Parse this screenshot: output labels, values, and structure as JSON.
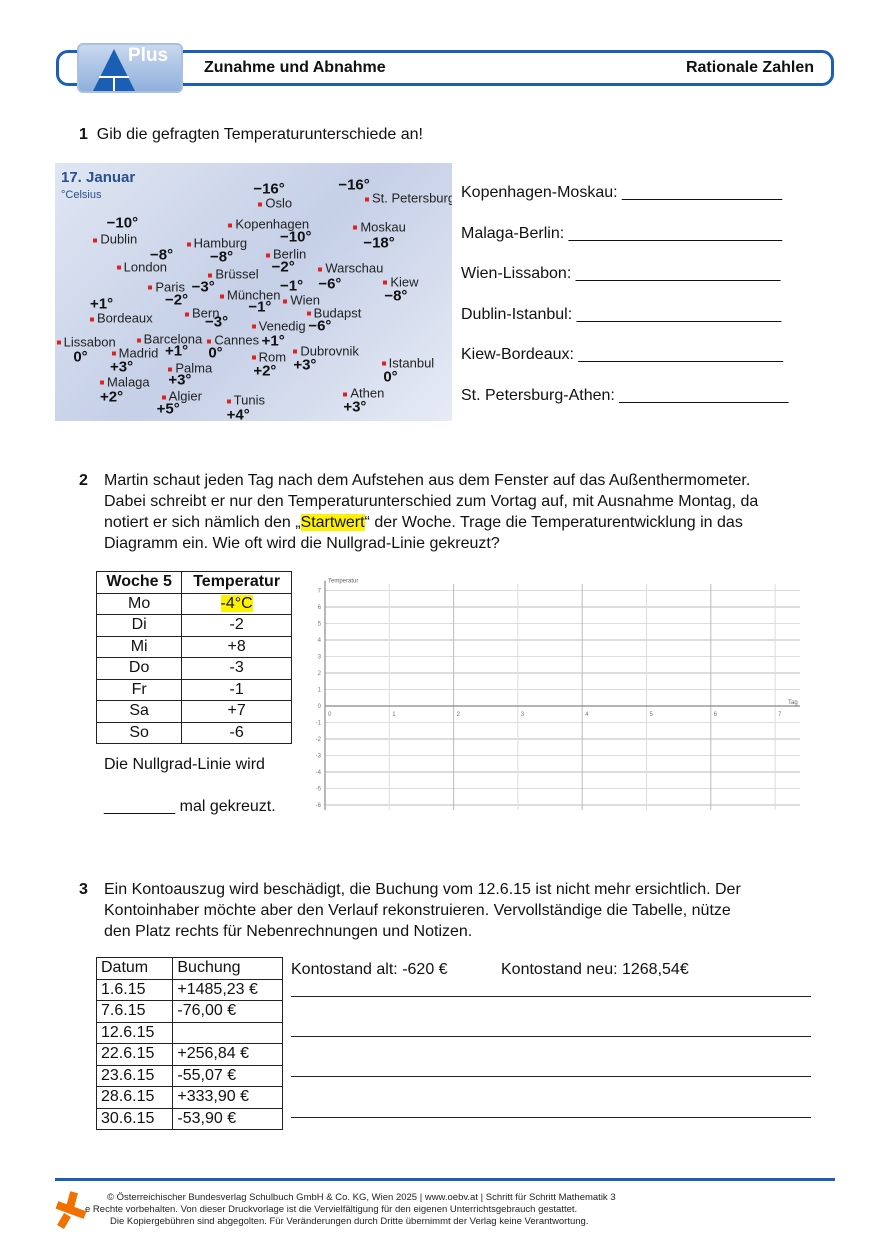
{
  "header": {
    "badge": "Plus",
    "title": "Zunahme und Abnahme",
    "subject": "Rationale Zahlen",
    "accent": "#1a5fb4"
  },
  "q1": {
    "number": "1",
    "text": "Gib die gefragten Temperaturunterschiede an!",
    "map": {
      "title": "17. Januar",
      "unit": "°Celsius",
      "cities": [
        {
          "name": "Oslo",
          "temp": "−16°"
        },
        {
          "name": "St. Petersburg",
          "temp": "−16°"
        },
        {
          "name": "Dublin",
          "temp": "−10°"
        },
        {
          "name": "London",
          "temp": "−8°"
        },
        {
          "name": "Hamburg",
          "temp": "−8°"
        },
        {
          "name": "Kopenhagen",
          "temp": "−10°"
        },
        {
          "name": "Moskau",
          "temp": "−18°"
        },
        {
          "name": "Berlin",
          "temp": "−2°"
        },
        {
          "name": "Brüssel",
          "temp": "−3°"
        },
        {
          "name": "Paris",
          "temp": "−2°"
        },
        {
          "name": "Warschau",
          "temp": "−6°"
        },
        {
          "name": "Kiew",
          "temp": "−8°"
        },
        {
          "name": "München",
          "temp": "−1°"
        },
        {
          "name": "Wien",
          "temp": "−1°"
        },
        {
          "name": "Bordeaux",
          "temp": "+1°"
        },
        {
          "name": "Bern",
          "temp": "−3°"
        },
        {
          "name": "Budapst",
          "temp": "−6°"
        },
        {
          "name": "Venedig",
          "temp": "+1°"
        },
        {
          "name": "Lissabon",
          "temp": "0°"
        },
        {
          "name": "Barcelona",
          "temp": "+1°"
        },
        {
          "name": "Cannes",
          "temp": "0°"
        },
        {
          "name": "Madrid",
          "temp": "+3°"
        },
        {
          "name": "Rom",
          "temp": "+2°"
        },
        {
          "name": "Dubrovnik",
          "temp": "+3°"
        },
        {
          "name": "Istanbul",
          "temp": "0°"
        },
        {
          "name": "Palma",
          "temp": "+3°"
        },
        {
          "name": "Malaga",
          "temp": "+2°"
        },
        {
          "name": "Algier",
          "temp": "+5°"
        },
        {
          "name": "Tunis",
          "temp": "+4°"
        },
        {
          "name": "Athen",
          "temp": "+3°"
        }
      ]
    },
    "answers": [
      "Kopenhagen-Moskau: __________________",
      "Malaga-Berlin: ________________________",
      "Wien-Lissabon: _______________________",
      "Dublin-Istanbul: _______________________",
      "Kiew-Bordeaux: _______________________",
      "St. Petersburg-Athen: ___________________"
    ]
  },
  "q2": {
    "number": "2",
    "text_lines": [
      "Martin schaut jeden Tag nach dem Aufstehen aus dem Fenster auf das Außenthermometer.",
      "Dabei schreibt er nur den Temperaturunterschied zum Vortag auf, mit Ausnahme Montag, da"
    ],
    "line3_pre": "notiert er sich nämlich den „",
    "line3_hl": "Startwert",
    "line3_post": "“ der Woche. Trage die Temperaturentwicklung in das",
    "line4": "Diagramm ein. Wie oft wird die Nullgrad-Linie gekreuzt?",
    "table": {
      "headers": [
        "Woche 5",
        "Temperatur"
      ],
      "rows": [
        [
          "Mo",
          "-4°C"
        ],
        [
          "Di",
          "-2"
        ],
        [
          "Mi",
          "+8"
        ],
        [
          "Do",
          "-3"
        ],
        [
          "Fr",
          "-1"
        ],
        [
          "Sa",
          "+7"
        ],
        [
          "So",
          "-6"
        ]
      ]
    },
    "answer1": "Die Nullgrad-Linie wird",
    "answer2": "________ mal gekreuzt.",
    "chart_data": {
      "type": "line",
      "ylabel": "Temperatur",
      "xlabel": "Tag",
      "xlim": [
        0,
        7
      ],
      "ylim": [
        -6,
        7
      ],
      "xticks": [
        "0",
        "1",
        "2",
        "3",
        "4",
        "5",
        "6",
        "7"
      ],
      "yticks": [
        "7",
        "6",
        "5",
        "4",
        "3",
        "2",
        "1",
        "0",
        "-1",
        "-2",
        "-3",
        "-4",
        "-5",
        "-6"
      ],
      "grid": true,
      "series": []
    }
  },
  "q3": {
    "number": "3",
    "text_lines": [
      "Ein Kontoauszug wird beschädigt, die Buchung vom 12.6.15 ist nicht mehr ersichtlich. Der",
      "Kontoinhaber möchte aber den Verlauf rekonstruieren. Vervollständige die Tabelle, nütze",
      "den Platz rechts für Nebenrechnungen und Notizen."
    ],
    "table": {
      "headers": [
        "Datum",
        "Buchung"
      ],
      "rows": [
        [
          "1.6.15",
          "+1485,23 €"
        ],
        [
          "7.6.15",
          "-76,00 €"
        ],
        [
          "12.6.15",
          ""
        ],
        [
          "22.6.15",
          "+256,84 €"
        ],
        [
          "23.6.15",
          "-55,07 €"
        ],
        [
          "28.6.15",
          "+333,90 €"
        ],
        [
          "30.6.15",
          "-53,90 €"
        ]
      ]
    },
    "balance_old": "Kontostand alt: -620 €",
    "balance_new": "Kontostand neu: 1268,54€"
  },
  "footer": {
    "lines": [
      "© Österreichischer Bundesverlag Schulbuch GmbH & Co. KG, Wien 2025 | www.oebv.at | Schritt für Schritt Mathematik 3",
      "e Rechte vorbehalten. Von dieser Druckvorlage ist die Vervielfältigung für den eigenen Unterrichtsgebrauch gestattet.",
      "Die Kopiergebühren sind abgegolten. Für Veränderungen durch Dritte übernimmt der Verlag keine Verantwortung."
    ],
    "logo_color": "#f07000"
  }
}
